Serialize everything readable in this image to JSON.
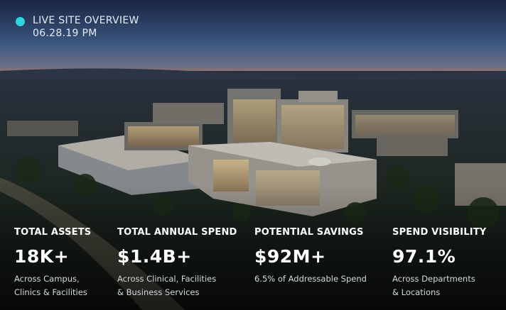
{
  "header": {
    "title": "LIVE SITE OVERVIEW",
    "timestamp": "06.28.19 PM"
  },
  "stats": [
    {
      "label": "TOTAL ASSETS",
      "value": "18K+",
      "description": [
        "Across Campus,",
        "Clinics & Facilities"
      ]
    },
    {
      "label": "TOTAL ANNUAL SPEND",
      "value": "$1.4B+",
      "description": [
        "Across Clinical, Facilities",
        "& Business Services"
      ]
    },
    {
      "label": "POTENTIAL SAVINGS",
      "value": "$92M+",
      "description": [
        "6.5% of Addressable Spend"
      ]
    },
    {
      "label": "SPEND VISIBILITY",
      "value": "97.1%",
      "description": [
        "Across Departments",
        "& Locations"
      ]
    }
  ]
}
